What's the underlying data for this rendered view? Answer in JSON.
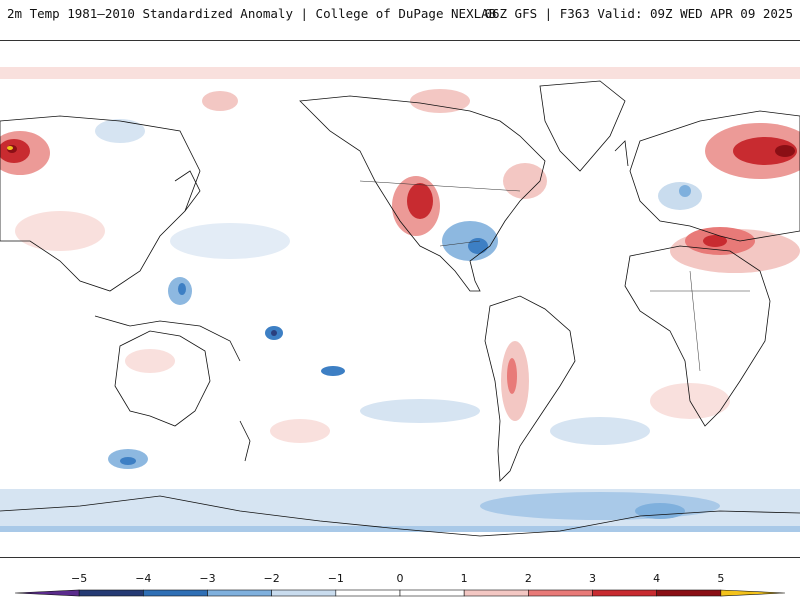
{
  "header": {
    "title_left": "2m Temp 1981–2010 Standardized Anomaly | College of DuPage NEXLAB",
    "title_right": "06Z GFS | F363 Valid: 09Z WED APR 09 2025"
  },
  "legend": {
    "ticks": [
      "−5",
      "−4",
      "−3",
      "−2",
      "−1",
      "0",
      "1",
      "2",
      "3",
      "4",
      "5"
    ],
    "colors": [
      "#5a2b8c",
      "#253a74",
      "#2f6fb5",
      "#7fb0dd",
      "#c9dcee",
      "#ffffff",
      "#ffffff",
      "#f3c7c3",
      "#e87a78",
      "#c82b30",
      "#8a0f15",
      "#f3c21b"
    ]
  },
  "map": {
    "projection": "global equirectangular, Pacific-centered",
    "colors": {
      "warm_light": "#f7d2cf",
      "warm_mid": "#ec9a97",
      "warm_strong": "#d23a3f",
      "warm_extreme": "#8a0f15",
      "cool_light": "#d6e4f2",
      "cool_mid": "#8db8e0",
      "cool_strong": "#3d7fc4",
      "cool_extreme": "#2a3f7e"
    }
  }
}
